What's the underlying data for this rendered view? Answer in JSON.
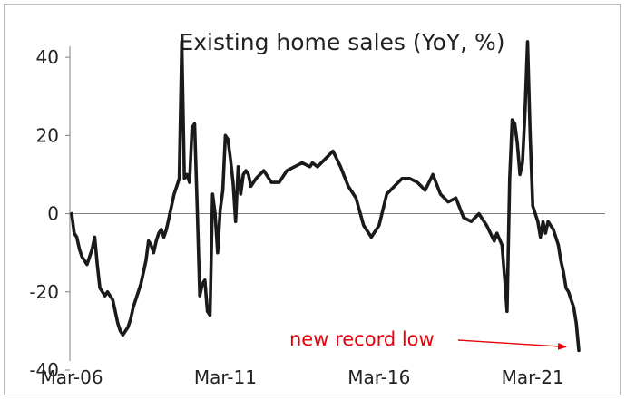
{
  "chart_data": {
    "type": "line",
    "title": "Existing home sales (YoY, %)",
    "xlabel": "",
    "ylabel": "",
    "ylim": [
      -40,
      50
    ],
    "yticks": [
      -40,
      -20,
      0,
      20,
      40
    ],
    "ytick_labels": [
      "-40",
      "-20",
      "0",
      "20",
      "40"
    ],
    "xlim": [
      "2006-03",
      "2022-09"
    ],
    "xticks": [
      "2006-03",
      "2011-03",
      "2016-03",
      "2021-03"
    ],
    "xtick_labels": [
      "Mar-06",
      "Mar-11",
      "Mar-16",
      "Mar-21"
    ],
    "grid": false,
    "legend": "none",
    "line_color": "#1a1a1a",
    "annotation": {
      "text": "new record low",
      "color": "#e8000b",
      "arrow_target": [
        "2022-09",
        -35
      ]
    },
    "series": [
      {
        "x": [
          "2006-03",
          "2006-04",
          "2006-05",
          "2006-06",
          "2006-07",
          "2006-08",
          "2006-09",
          "2006-10",
          "2006-11",
          "2006-12",
          "2007-01",
          "2007-02",
          "2007-03",
          "2007-04",
          "2007-05",
          "2007-06",
          "2007-07",
          "2007-08",
          "2007-09",
          "2007-10",
          "2007-11",
          "2007-12",
          "2008-01",
          "2008-02",
          "2008-03",
          "2008-04",
          "2008-05",
          "2008-06",
          "2008-07",
          "2008-08",
          "2008-09",
          "2008-10",
          "2008-11",
          "2008-12",
          "2009-01",
          "2009-02",
          "2009-03",
          "2009-04",
          "2009-05",
          "2009-06",
          "2009-07",
          "2009-08",
          "2009-09",
          "2009-10",
          "2009-11",
          "2009-12",
          "2010-01",
          "2010-02",
          "2010-03",
          "2010-04",
          "2010-05",
          "2010-06",
          "2010-07",
          "2010-08",
          "2010-09",
          "2010-10",
          "2010-11",
          "2010-12",
          "2011-01",
          "2011-02",
          "2011-03",
          "2011-04",
          "2011-05",
          "2011-06",
          "2011-07",
          "2011-08",
          "2011-09",
          "2011-10",
          "2011-11",
          "2011-12",
          "2012-01",
          "2012-03",
          "2012-06",
          "2012-09",
          "2012-12",
          "2013-03",
          "2013-06",
          "2013-09",
          "2013-12",
          "2014-01",
          "2014-03",
          "2014-06",
          "2014-09",
          "2014-12",
          "2015-03",
          "2015-06",
          "2015-09",
          "2015-12",
          "2016-01",
          "2016-03",
          "2016-06",
          "2016-09",
          "2016-12",
          "2017-03",
          "2017-06",
          "2017-09",
          "2017-12",
          "2018-03",
          "2018-06",
          "2018-09",
          "2018-12",
          "2019-03",
          "2019-06",
          "2019-09",
          "2019-12",
          "2020-01",
          "2020-03",
          "2020-04",
          "2020-05",
          "2020-06",
          "2020-07",
          "2020-08",
          "2020-09",
          "2020-10",
          "2020-11",
          "2020-12",
          "2021-01",
          "2021-02",
          "2021-03",
          "2021-04",
          "2021-05",
          "2021-06",
          "2021-07",
          "2021-08",
          "2021-09",
          "2021-10",
          "2021-11",
          "2021-12",
          "2022-01",
          "2022-02",
          "2022-03",
          "2022-04",
          "2022-05",
          "2022-06",
          "2022-07",
          "2022-08",
          "2022-09"
        ],
        "y": [
          0,
          -5,
          -6,
          -9,
          -11,
          -12,
          -13,
          -11,
          -9,
          -6,
          -13,
          -19,
          -20,
          -21,
          -20,
          -21,
          -22,
          -25,
          -28,
          -30,
          -31,
          -30,
          -29,
          -27,
          -24,
          -22,
          -20,
          -18,
          -15,
          -12,
          -7,
          -8,
          -10,
          -7,
          -5,
          -4,
          -6,
          -4,
          -1,
          2,
          5,
          7,
          9,
          44,
          9,
          10,
          8,
          22,
          23,
          2,
          -21,
          -18,
          -17,
          -25,
          -26,
          5,
          0,
          -10,
          1,
          6,
          20,
          19,
          14,
          8,
          -2,
          12,
          5,
          10,
          11,
          10,
          7,
          9,
          11,
          8,
          8,
          11,
          12,
          13,
          12,
          13,
          12,
          14,
          16,
          12,
          7,
          4,
          -3,
          -6,
          -5,
          -3,
          5,
          7,
          9,
          9,
          8,
          6,
          10,
          5,
          3,
          4,
          -1,
          -2,
          0,
          -3,
          -7,
          -5,
          -8,
          -16,
          -25,
          9,
          24,
          23,
          18,
          10,
          13,
          26,
          44,
          20,
          2,
          0,
          -2,
          -6,
          -2,
          -5,
          -2,
          -3,
          -4,
          -6,
          -8,
          -12,
          -15,
          -19,
          -20,
          -22,
          -24,
          -28,
          -35
        ]
      }
    ]
  }
}
